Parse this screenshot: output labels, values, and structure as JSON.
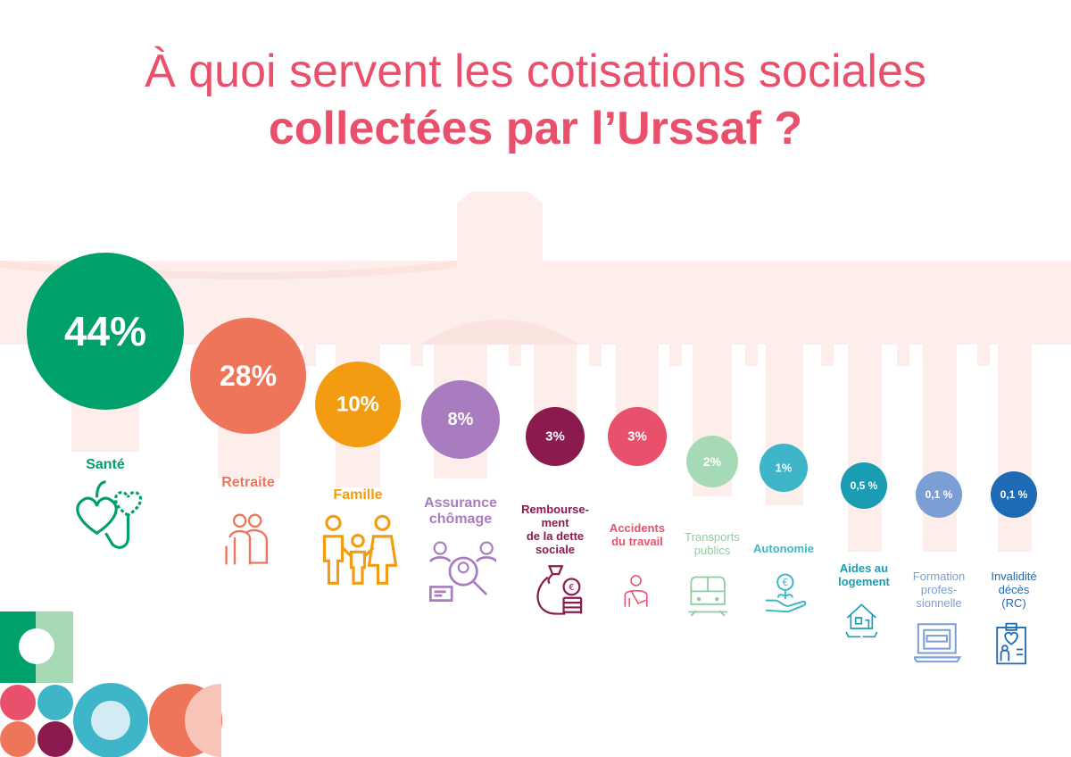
{
  "title": {
    "line1": "À quoi servent les cotisations sociales",
    "line2": "collectées par l’Urssaf ?"
  },
  "colors": {
    "title": "#e8506b",
    "building": "#fdeeec"
  },
  "chart_data": {
    "type": "bubble",
    "title": "À quoi servent les cotisations sociales collectées par l’Urssaf ?",
    "categories": [
      "Santé",
      "Retraite",
      "Famille",
      "Assurance chômage",
      "Rembourse-ment de la dette sociale",
      "Accidents du travail",
      "Transports publics",
      "Autonomie",
      "Aides au logement",
      "Formation profes-sionnelle",
      "Invalidité décès (RC)"
    ],
    "values": [
      44,
      28,
      10,
      8,
      3,
      3,
      2,
      1,
      0.5,
      0.1,
      0.1
    ],
    "items": [
      {
        "label": "Santé",
        "value_label": "44%",
        "color": "#00a06b",
        "icon": "hearts-stethoscope-icon"
      },
      {
        "label": "Retraite",
        "value_label": "28%",
        "color": "#ee7559",
        "icon": "elderly-couple-icon"
      },
      {
        "label": "Famille",
        "value_label": "10%",
        "color": "#f39c12",
        "icon": "family-icon"
      },
      {
        "label": "Assurance\nchômage",
        "value_label": "8%",
        "color": "#a97cbf",
        "icon": "job-search-icon"
      },
      {
        "label": "Rembourse-\nment\nde la dette\nsociale",
        "value_label": "3%",
        "color": "#8b1a4e",
        "icon": "money-bag-euro-icon"
      },
      {
        "label": "Accidents\ndu travail",
        "value_label": "3%",
        "color": "#e8506b",
        "icon": "injured-worker-icon"
      },
      {
        "label": "Transports\npublics",
        "value_label": "2%",
        "color": "#a6d9b5",
        "icon": "train-icon"
      },
      {
        "label": "Autonomie",
        "value_label": "1%",
        "color": "#3eb5c8",
        "icon": "hand-coin-plant-icon"
      },
      {
        "label": "Aides au\nlogement",
        "value_label": "0,5 %",
        "color": "#1a9db3",
        "icon": "house-hands-icon"
      },
      {
        "label": "Formation\nprofes-\nsionnelle",
        "value_label": "0,1 %",
        "color": "#7b9fd4",
        "icon": "laptop-icon"
      },
      {
        "label": "Invalidité\ndécès\n(RC)",
        "value_label": "0,1 %",
        "color": "#1e6bb5",
        "icon": "clipboard-heart-icon"
      }
    ]
  }
}
